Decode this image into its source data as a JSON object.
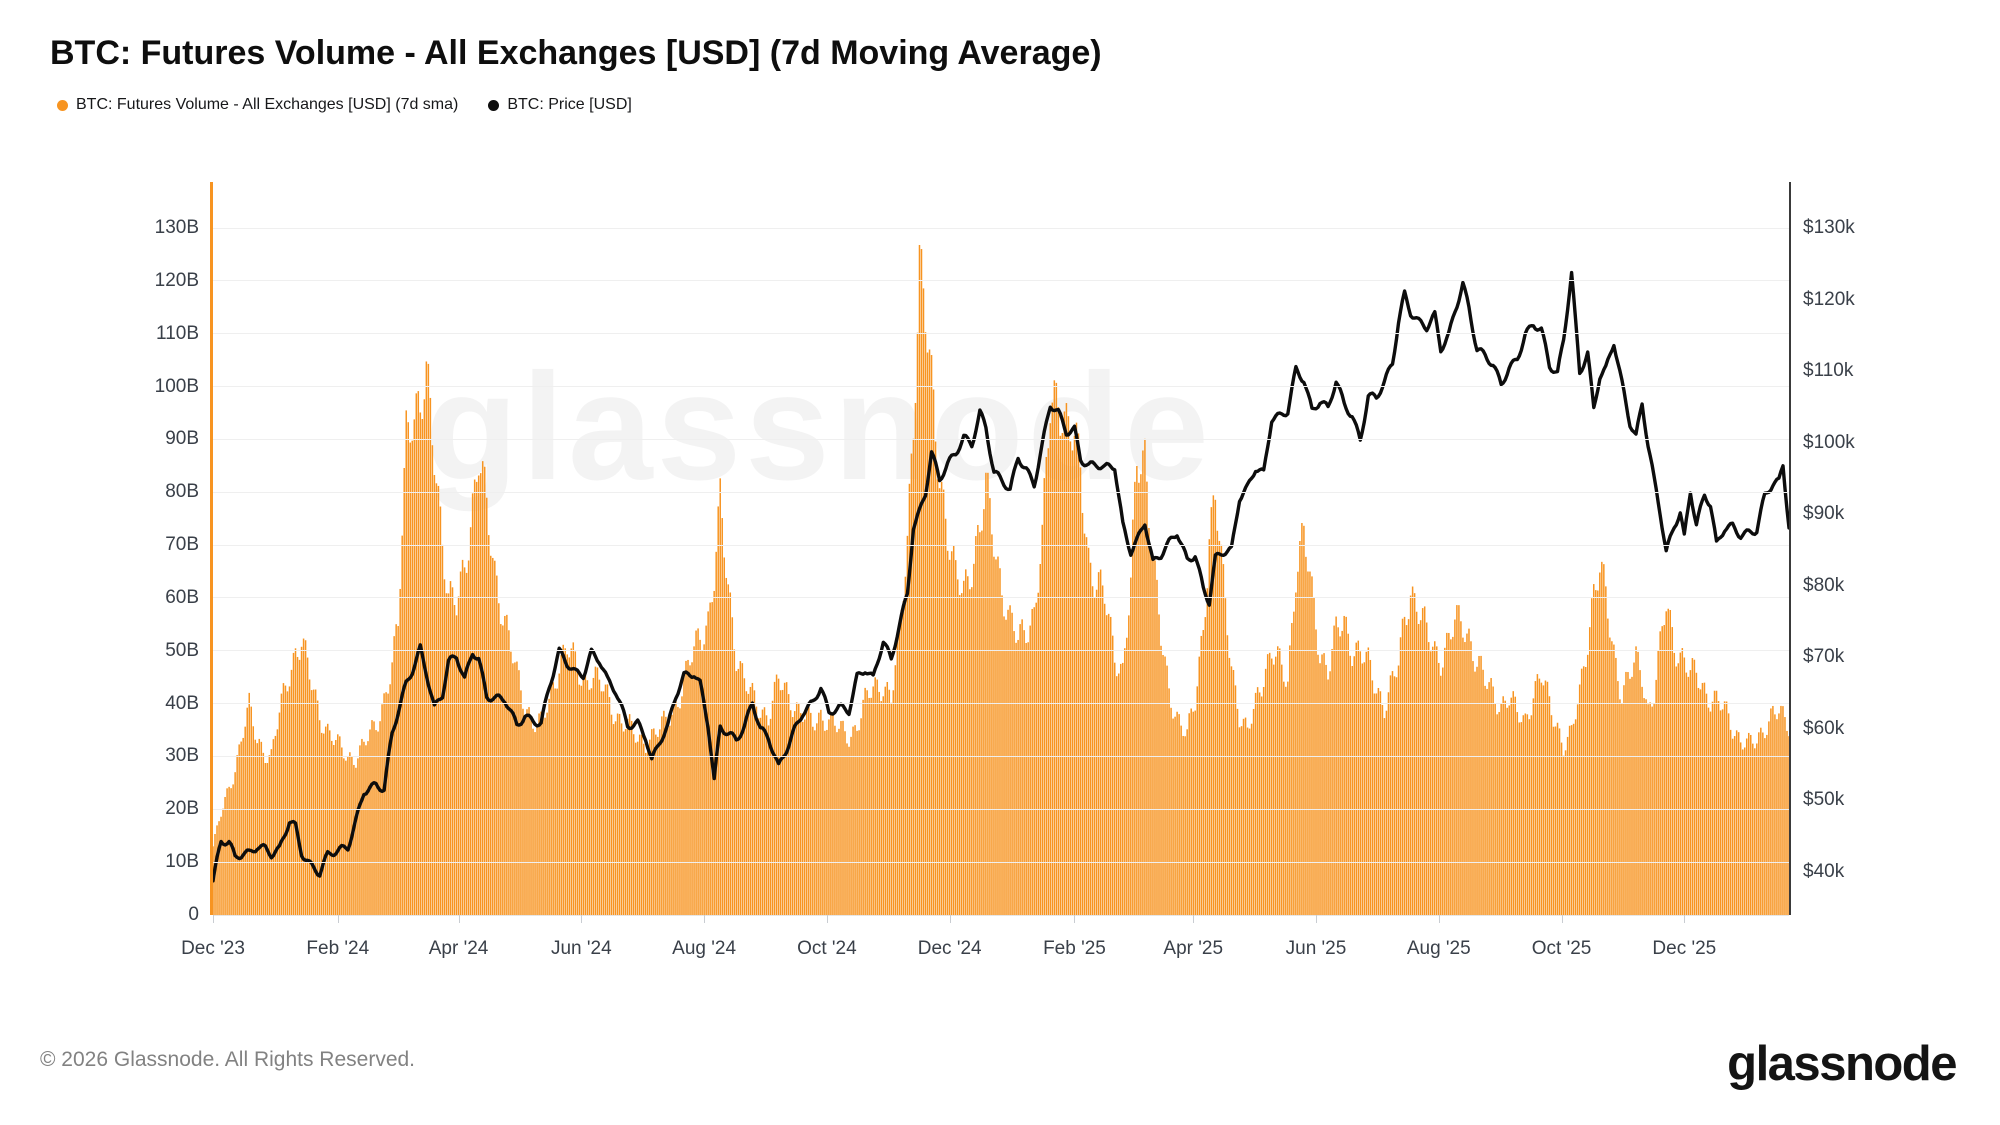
{
  "title": "BTC: Futures Volume - All Exchanges [USD] (7d Moving Average)",
  "legend": [
    {
      "label": "BTC: Futures Volume - All Exchanges [USD] (7d sma)",
      "color": "#f79421"
    },
    {
      "label": "BTC: Price [USD]",
      "color": "#0d0d0d"
    }
  ],
  "watermark": "glassnode",
  "footer": {
    "copyright": "© 2026 Glassnode. All Rights Reserved.",
    "brand": "glassnode"
  },
  "chart_data": {
    "type": "mixed",
    "grid": "horizontal",
    "left_axis": {
      "title": "Futures Volume (USD)",
      "range": [
        0,
        130000000000
      ],
      "tick_labels": [
        "0",
        "10B",
        "20B",
        "30B",
        "40B",
        "50B",
        "60B",
        "70B",
        "80B",
        "90B",
        "100B",
        "110B",
        "120B",
        "130B"
      ]
    },
    "right_axis": {
      "title": "BTC Price (USD)",
      "range_at_ticks": [
        40000,
        130000
      ],
      "tick_labels": [
        "$40k",
        "$50k",
        "$60k",
        "$70k",
        "$80k",
        "$90k",
        "$100k",
        "$110k",
        "$120k",
        "$130k"
      ]
    },
    "x_axis": {
      "tick_labels": [
        "Dec '23",
        "Feb '24",
        "Apr '24",
        "Jun '24",
        "Aug '24",
        "Oct '24",
        "Dec '24",
        "Feb '25",
        "Apr '25",
        "Jun '25",
        "Aug '25",
        "Oct '25",
        "Dec '25"
      ],
      "tick_dates": [
        "2023-12-01",
        "2024-02-01",
        "2024-04-01",
        "2024-06-01",
        "2024-08-01",
        "2024-10-01",
        "2024-12-01",
        "2025-02-01",
        "2025-04-01",
        "2025-06-01",
        "2025-08-01",
        "2025-10-01",
        "2025-12-01"
      ],
      "start_date": "2023-12-01",
      "end_date": "2026-01-22"
    },
    "x": [
      "2023-12-01",
      "2023-12-05",
      "2023-12-09",
      "2023-12-12",
      "2023-12-16",
      "2023-12-19",
      "2023-12-23",
      "2023-12-27",
      "2023-12-30",
      "2024-01-03",
      "2024-01-08",
      "2024-01-11",
      "2024-01-14",
      "2024-01-18",
      "2024-01-23",
      "2024-01-27",
      "2024-02-01",
      "2024-02-06",
      "2024-02-10",
      "2024-02-14",
      "2024-02-20",
      "2024-02-24",
      "2024-02-28",
      "2024-03-02",
      "2024-03-06",
      "2024-03-09",
      "2024-03-13",
      "2024-03-16",
      "2024-03-20",
      "2024-03-24",
      "2024-03-27",
      "2024-03-31",
      "2024-04-04",
      "2024-04-08",
      "2024-04-11",
      "2024-04-15",
      "2024-04-19",
      "2024-04-24",
      "2024-04-30",
      "2024-05-04",
      "2024-05-08",
      "2024-05-12",
      "2024-05-16",
      "2024-05-21",
      "2024-05-25",
      "2024-05-29",
      "2024-06-02",
      "2024-06-06",
      "2024-06-10",
      "2024-06-14",
      "2024-06-18",
      "2024-06-24",
      "2024-06-29",
      "2024-07-03",
      "2024-07-06",
      "2024-07-10",
      "2024-07-14",
      "2024-07-18",
      "2024-07-22",
      "2024-07-27",
      "2024-07-30",
      "2024-08-03",
      "2024-08-06",
      "2024-08-09",
      "2024-08-13",
      "2024-08-17",
      "2024-08-21",
      "2024-08-25",
      "2024-08-29",
      "2024-09-02",
      "2024-09-07",
      "2024-09-11",
      "2024-09-15",
      "2024-09-19",
      "2024-09-24",
      "2024-09-28",
      "2024-10-02",
      "2024-10-07",
      "2024-10-12",
      "2024-10-16",
      "2024-10-20",
      "2024-10-24",
      "2024-10-29",
      "2024-11-02",
      "2024-11-06",
      "2024-11-10",
      "2024-11-13",
      "2024-11-16",
      "2024-11-19",
      "2024-11-22",
      "2024-11-26",
      "2024-11-30",
      "2024-12-04",
      "2024-12-08",
      "2024-12-12",
      "2024-12-16",
      "2024-12-19",
      "2024-12-23",
      "2024-12-27",
      "2024-12-31",
      "2025-01-04",
      "2025-01-08",
      "2025-01-12",
      "2025-01-16",
      "2025-01-20",
      "2025-01-24",
      "2025-01-28",
      "2025-02-01",
      "2025-02-04",
      "2025-02-08",
      "2025-02-12",
      "2025-02-16",
      "2025-02-21",
      "2025-02-25",
      "2025-03-01",
      "2025-03-04",
      "2025-03-08",
      "2025-03-12",
      "2025-03-16",
      "2025-03-20",
      "2025-03-24",
      "2025-03-29",
      "2025-04-02",
      "2025-04-06",
      "2025-04-09",
      "2025-04-12",
      "2025-04-16",
      "2025-04-20",
      "2025-04-24",
      "2025-04-28",
      "2025-05-02",
      "2025-05-06",
      "2025-05-10",
      "2025-05-14",
      "2025-05-18",
      "2025-05-22",
      "2025-05-26",
      "2025-05-30",
      "2025-06-03",
      "2025-06-07",
      "2025-06-11",
      "2025-06-15",
      "2025-06-19",
      "2025-06-23",
      "2025-06-27",
      "2025-07-01",
      "2025-07-05",
      "2025-07-09",
      "2025-07-12",
      "2025-07-15",
      "2025-07-18",
      "2025-07-22",
      "2025-07-26",
      "2025-07-30",
      "2025-08-02",
      "2025-08-06",
      "2025-08-09",
      "2025-08-13",
      "2025-08-16",
      "2025-08-20",
      "2025-08-24",
      "2025-08-28",
      "2025-09-01",
      "2025-09-05",
      "2025-09-09",
      "2025-09-13",
      "2025-09-17",
      "2025-09-21",
      "2025-09-25",
      "2025-09-29",
      "2025-10-02",
      "2025-10-06",
      "2025-10-10",
      "2025-10-14",
      "2025-10-17",
      "2025-10-20",
      "2025-10-23",
      "2025-10-27",
      "2025-10-31",
      "2025-11-04",
      "2025-11-07",
      "2025-11-10",
      "2025-11-13",
      "2025-11-16",
      "2025-11-19",
      "2025-11-22",
      "2025-11-26",
      "2025-11-29",
      "2025-12-01",
      "2025-12-04",
      "2025-12-07",
      "2025-12-11",
      "2025-12-14",
      "2025-12-17",
      "2025-12-21",
      "2025-12-25",
      "2025-12-29",
      "2026-01-02",
      "2026-01-06",
      "2026-01-10",
      "2026-01-14",
      "2026-01-17",
      "2026-01-19",
      "2026-01-22"
    ],
    "series": [
      {
        "name": "BTC: Futures Volume - All Exchanges [USD] (7d sma)",
        "type": "bar",
        "axis": "left",
        "color": "#f79421",
        "unit": "billions USD",
        "values": [
          13,
          19,
          24,
          28,
          35,
          39,
          33,
          31,
          30,
          38,
          46,
          50,
          52,
          45,
          38,
          35,
          32,
          30,
          30,
          32,
          36,
          41,
          47,
          54,
          92,
          97,
          95,
          100,
          88,
          72,
          60,
          58,
          66,
          78,
          87,
          76,
          65,
          56,
          45,
          40,
          37,
          36,
          40,
          48,
          51,
          47,
          44,
          46,
          44,
          41,
          38,
          36,
          33,
          33,
          34,
          35,
          37,
          40,
          44,
          50,
          53,
          56,
          64,
          77,
          62,
          50,
          44,
          41,
          39,
          38,
          44,
          42,
          40,
          38,
          36,
          38,
          37,
          35,
          34,
          36,
          40,
          43,
          44,
          41,
          52,
          72,
          95,
          122,
          112,
          100,
          85,
          72,
          63,
          62,
          67,
          72,
          80,
          72,
          62,
          55,
          52,
          55,
          57,
          70,
          97,
          100,
          92,
          89,
          85,
          68,
          62,
          60,
          50,
          46,
          62,
          85,
          88,
          68,
          52,
          42,
          38,
          34,
          40,
          55,
          72,
          79,
          62,
          48,
          38,
          34,
          40,
          46,
          50,
          47,
          44,
          66,
          72,
          60,
          50,
          47,
          53,
          55,
          51,
          50,
          47,
          43,
          40,
          44,
          47,
          56,
          62,
          58,
          53,
          50,
          49,
          52,
          55,
          55,
          53,
          48,
          44,
          42,
          40,
          41,
          38,
          37,
          42,
          45,
          40,
          36,
          32,
          34,
          42,
          53,
          61,
          65,
          60,
          50,
          42,
          45,
          48,
          46,
          39,
          42,
          50,
          59,
          52,
          49,
          48,
          45,
          46,
          43,
          41,
          40,
          39,
          36,
          33,
          32,
          33,
          36,
          38,
          38,
          37,
          36
        ]
      },
      {
        "name": "BTC: Price [USD]",
        "type": "line",
        "axis": "right",
        "color": "#0d0d0d",
        "unit": "thousands USD",
        "values": [
          38.7,
          44.0,
          43.8,
          41.8,
          42.6,
          42.8,
          43.8,
          43.3,
          42.3,
          42.8,
          46.9,
          46.3,
          42.8,
          41.3,
          39.9,
          42.2,
          42.6,
          43.3,
          47.2,
          51.5,
          52.2,
          51.3,
          59.0,
          62.2,
          66.3,
          68.3,
          71.5,
          68.0,
          62.8,
          64.5,
          69.0,
          70.0,
          67.0,
          71.0,
          70.0,
          64.5,
          64.0,
          63.8,
          60.5,
          62.0,
          61.3,
          60.8,
          65.5,
          70.5,
          69.0,
          68.0,
          67.8,
          70.8,
          69.5,
          66.5,
          65.0,
          60.5,
          61.0,
          59.0,
          55.5,
          58.0,
          60.0,
          64.5,
          67.5,
          68.0,
          66.5,
          60.5,
          52.5,
          60.0,
          59.0,
          58.5,
          60.5,
          64.0,
          60.0,
          58.5,
          54.3,
          57.0,
          60.0,
          62.5,
          63.8,
          65.7,
          61.8,
          62.8,
          62.6,
          67.5,
          68.5,
          67.0,
          72.0,
          69.3,
          74.5,
          79.0,
          88.5,
          90.5,
          93.0,
          98.5,
          94.5,
          96.8,
          98.5,
          101.0,
          100.0,
          104.3,
          102.0,
          95.5,
          94.5,
          93.3,
          98.2,
          96.5,
          94.2,
          99.5,
          105.0,
          104.0,
          101.5,
          102.1,
          98.0,
          96.9,
          96.8,
          96.2,
          96.5,
          88.5,
          85.0,
          86.5,
          89.0,
          83.0,
          84.0,
          85.8,
          87.5,
          83.8,
          84.5,
          79.5,
          77.5,
          83.5,
          84.5,
          85.0,
          92.5,
          94.0,
          96.5,
          95.5,
          103.0,
          103.5,
          104.5,
          110.5,
          109.0,
          104.5,
          105.5,
          104.5,
          108.5,
          105.5,
          104.0,
          100.5,
          106.5,
          106.0,
          108.2,
          111.0,
          117.0,
          121.0,
          118.5,
          117.0,
          116.0,
          117.5,
          112.8,
          115.0,
          118.5,
          122.5,
          119.0,
          113.0,
          112.0,
          110.5,
          108.0,
          110.5,
          112.0,
          115.3,
          116.5,
          115.5,
          110.5,
          109.5,
          114.5,
          124.0,
          110.0,
          112.5,
          104.5,
          109.0,
          110.0,
          114.0,
          108.5,
          103.0,
          101.0,
          105.5,
          99.5,
          94.5,
          90.0,
          84.5,
          88.5,
          90.5,
          87.0,
          93.5,
          88.5,
          92.5,
          91.0,
          85.5,
          88.0,
          88.5,
          87.3,
          87.5,
          87.6,
          92.3,
          94.0,
          94.5,
          97.0,
          88.5
        ]
      }
    ]
  }
}
